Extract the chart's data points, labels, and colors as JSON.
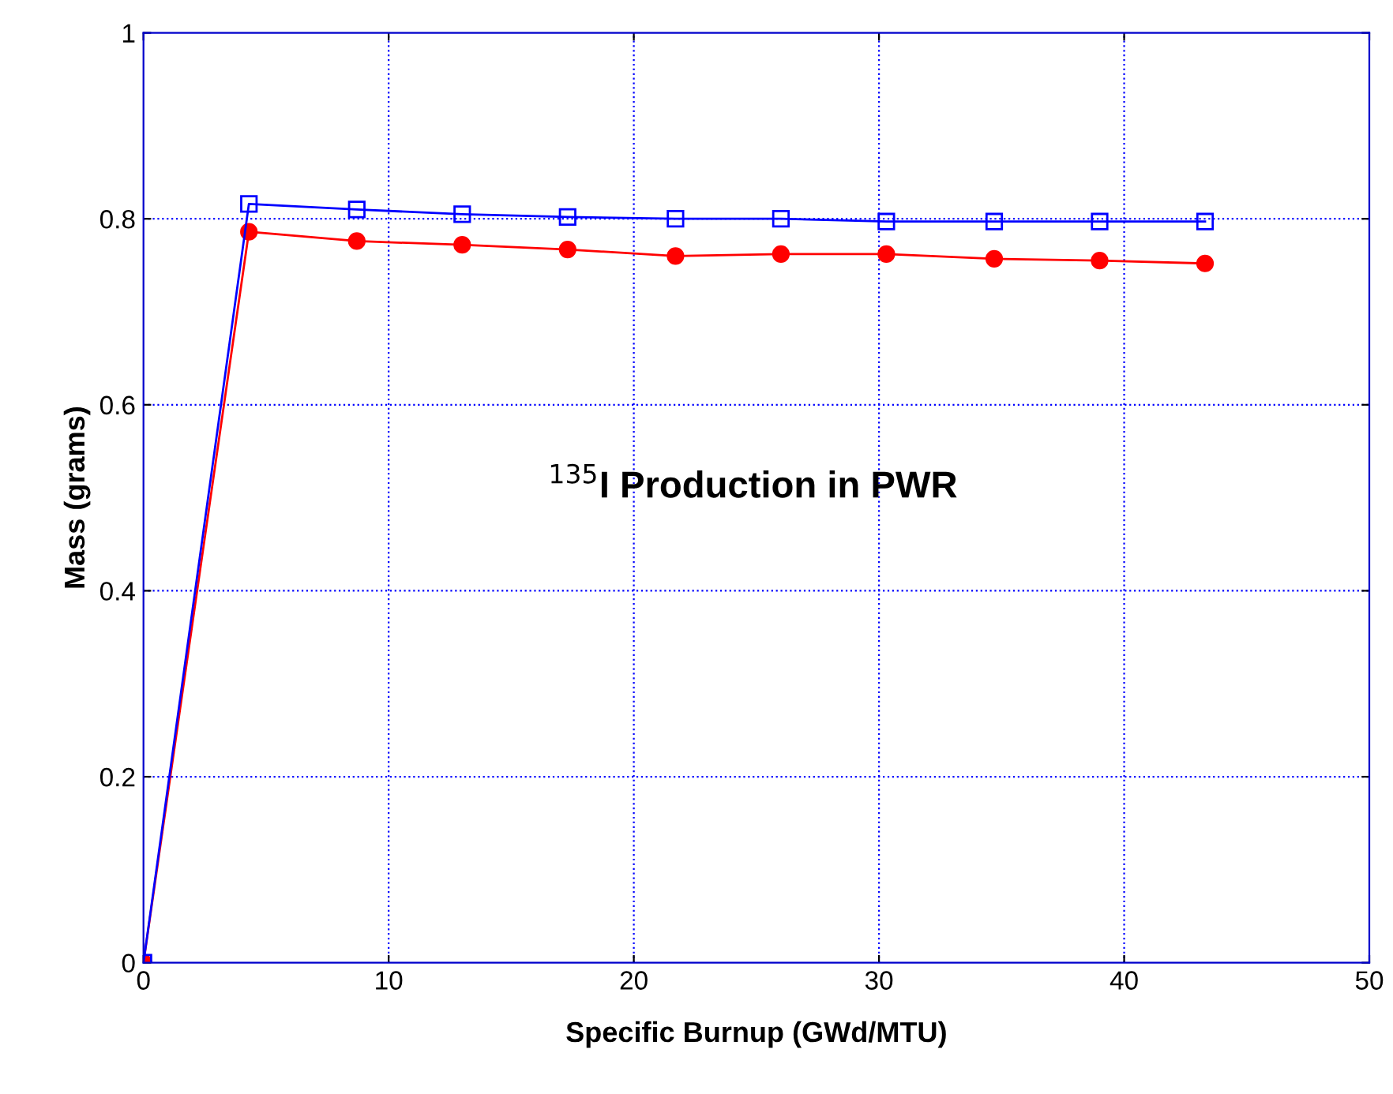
{
  "chart_data": {
    "type": "line",
    "xlabel": "Specific Burnup (GWd/MTU)",
    "ylabel": "Mass (grams)",
    "annotations": [
      "$^{135}$I Production in PWR"
    ],
    "x": [
      0,
      4.3,
      8.7,
      13,
      17.3,
      21.7,
      26,
      30.3,
      34.7,
      39,
      43.3
    ],
    "series": [
      {
        "color": "#ff0000",
        "marker": "circle",
        "values": [
          0,
          0.786,
          0.776,
          0.772,
          0.767,
          0.76,
          0.762,
          0.762,
          0.757,
          0.755,
          0.752
        ]
      },
      {
        "color": "#0000ff",
        "marker": "square",
        "values": [
          0,
          0.816,
          0.81,
          0.805,
          0.802,
          0.8,
          0.8,
          0.797,
          0.797,
          0.797,
          0.797
        ]
      }
    ],
    "xlim": [
      0,
      50
    ],
    "ylim": [
      0,
      1
    ],
    "xticks": [
      0,
      10,
      20,
      30,
      40,
      50
    ],
    "yticks": [
      0,
      0.2,
      0.4,
      0.6,
      0.8,
      1
    ],
    "grid": true,
    "line_style": "solid"
  }
}
